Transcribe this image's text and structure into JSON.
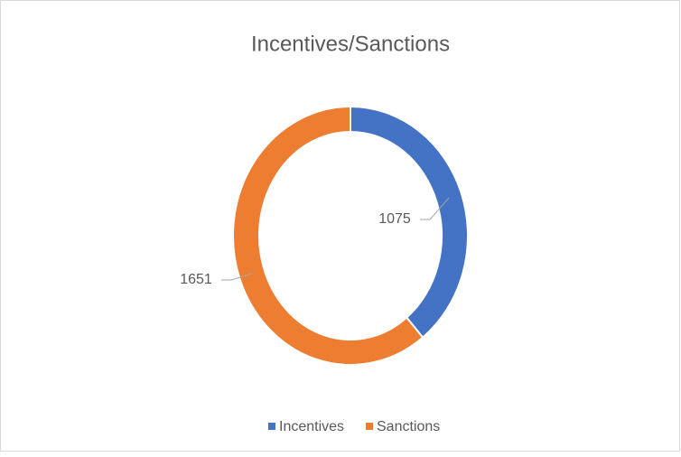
{
  "chart_data": {
    "type": "doughnut",
    "title": "Incentives/Sanctions",
    "categories": [
      "Incentives",
      "Sanctions"
    ],
    "values": [
      1075,
      1651
    ],
    "colors": [
      "#4472c4",
      "#ed7d31"
    ],
    "legend": "bottom"
  }
}
